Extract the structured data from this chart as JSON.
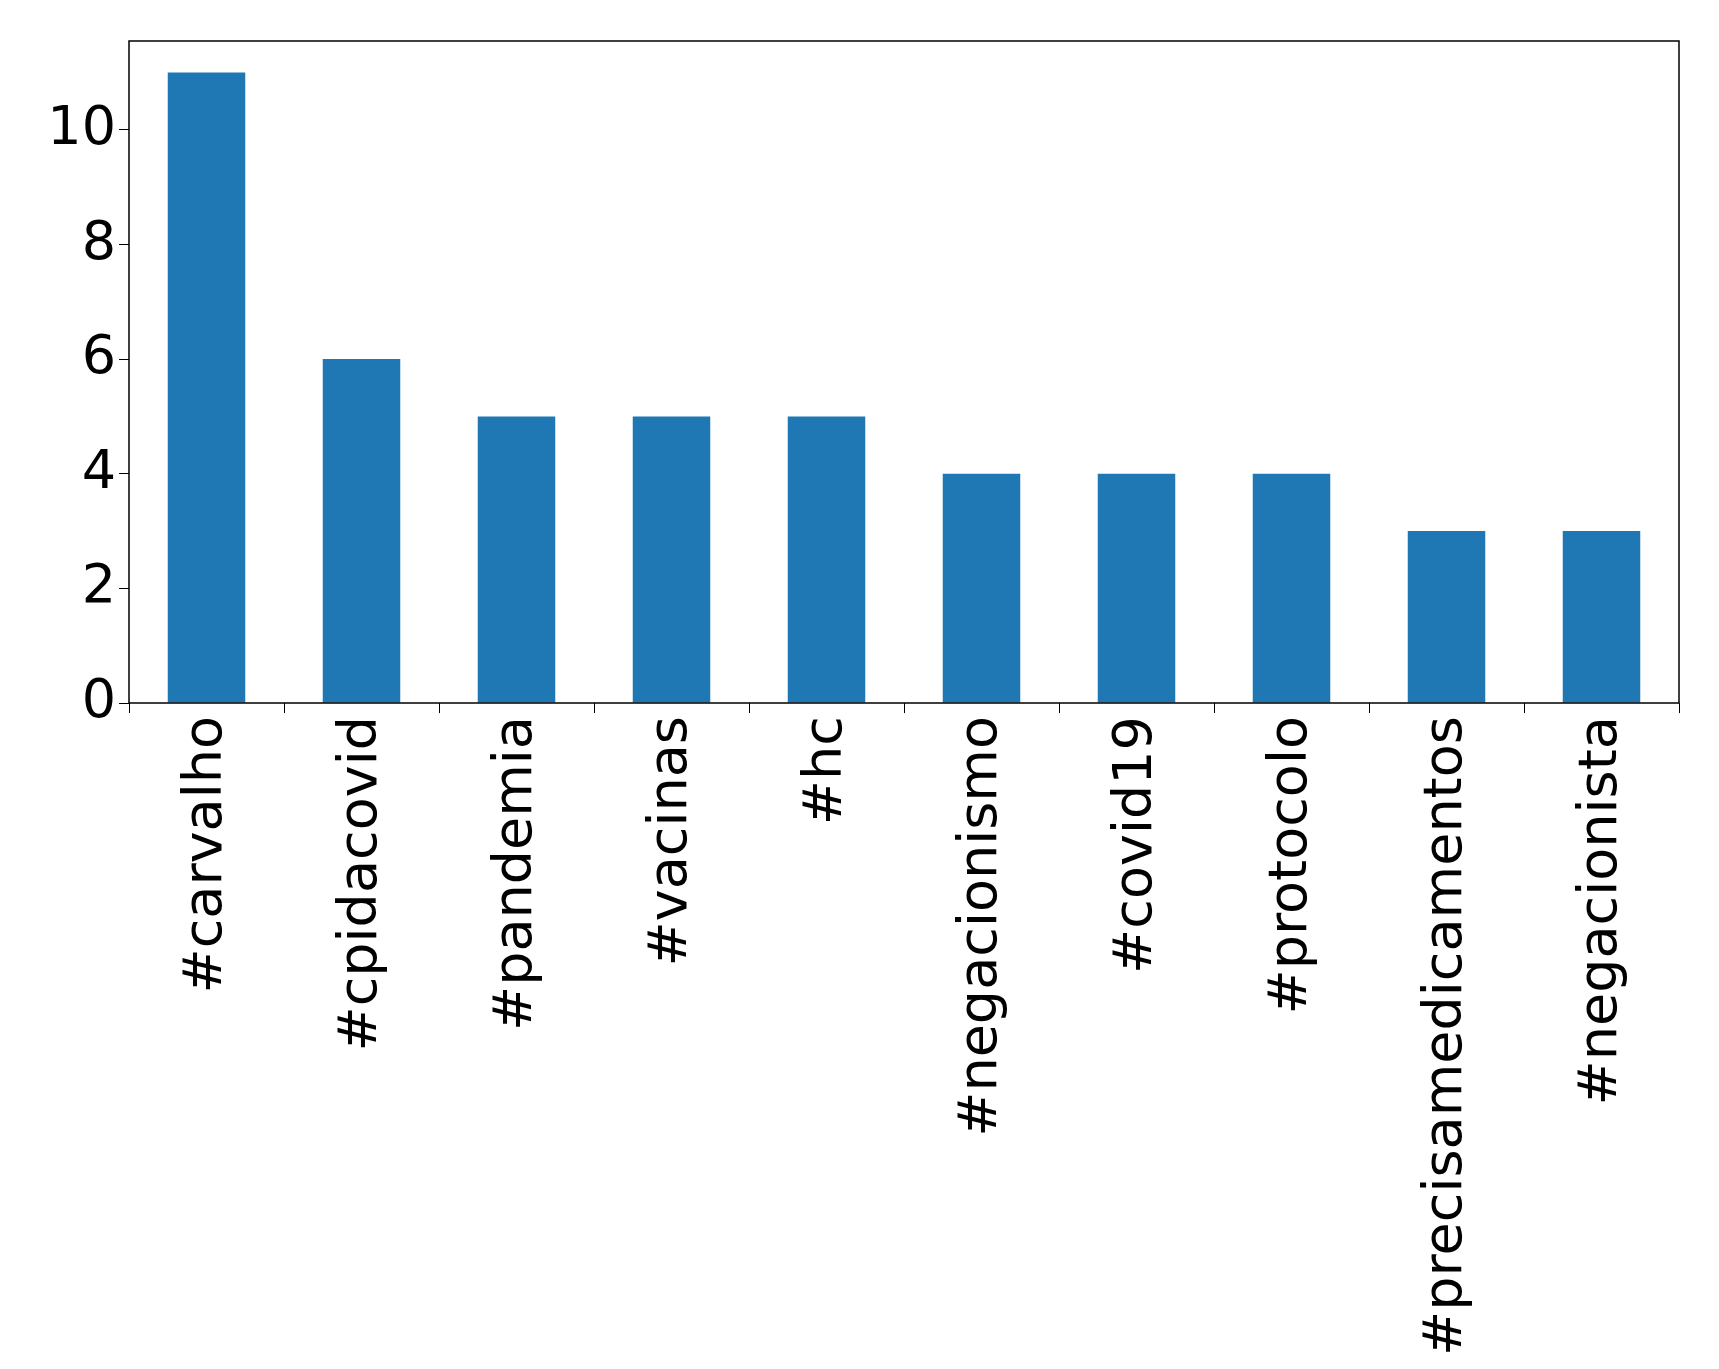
{
  "chart_data": {
    "type": "bar",
    "categories": [
      "#carvalho",
      "#cpidacovid",
      "#pandemia",
      "#vacinas",
      "#hc",
      "#negacionismo",
      "#covid19",
      "#protocolo",
      "#precisamedicamentos",
      "#negacionista"
    ],
    "values": [
      11,
      6,
      5,
      5,
      5,
      4,
      4,
      4,
      3,
      3
    ],
    "color": "#1f77b4",
    "ylim": [
      0,
      11.55
    ],
    "yticks": [
      0,
      2,
      4,
      6,
      8,
      10
    ],
    "grid": false,
    "legend": false
  }
}
